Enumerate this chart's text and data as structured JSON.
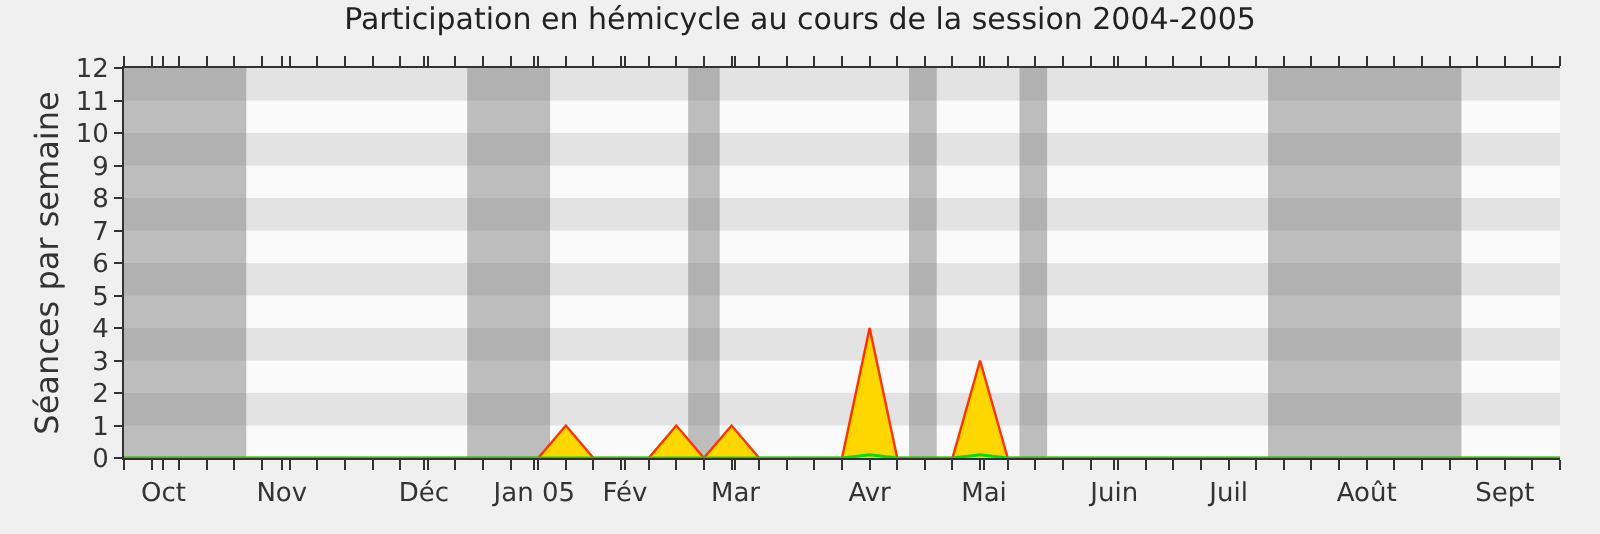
{
  "chart_data": {
    "type": "area",
    "title": "Participation en hémicycle au cours de la session 2004-2005",
    "ylabel": "Séances par semaine",
    "x": [
      "2004-09-27",
      "2004-10-04",
      "2004-10-11",
      "2004-10-18",
      "2004-10-25",
      "2004-11-01",
      "2004-11-08",
      "2004-11-15",
      "2004-11-22",
      "2004-11-29",
      "2004-12-06",
      "2004-12-13",
      "2004-12-20",
      "2004-12-27",
      "2005-01-03",
      "2005-01-10",
      "2005-01-17",
      "2005-01-24",
      "2005-01-31",
      "2005-02-07",
      "2005-02-14",
      "2005-02-21",
      "2005-02-28",
      "2005-03-07",
      "2005-03-14",
      "2005-03-21",
      "2005-03-28",
      "2005-04-04",
      "2005-04-11",
      "2005-04-18",
      "2005-04-25",
      "2005-05-02",
      "2005-05-09",
      "2005-05-16",
      "2005-05-23",
      "2005-05-30",
      "2005-06-06",
      "2005-06-13",
      "2005-06-20",
      "2005-06-27",
      "2005-07-04",
      "2005-07-11",
      "2005-07-18",
      "2005-07-25",
      "2005-08-01",
      "2005-08-08",
      "2005-08-15",
      "2005-08-22",
      "2005-08-29",
      "2005-09-05",
      "2005-09-12",
      "2005-09-19",
      "2005-09-26"
    ],
    "series": [
      {
        "color": "#ffd700",
        "values": [
          0,
          0,
          0,
          0,
          0,
          0,
          0,
          0,
          0,
          0,
          0,
          0,
          0,
          0,
          0,
          0,
          1,
          0,
          0,
          0,
          1,
          0,
          1,
          0,
          0,
          0,
          0,
          4,
          0,
          0,
          0,
          3,
          0,
          0,
          0,
          0,
          0,
          0,
          0,
          0,
          0,
          0,
          0,
          0,
          0,
          0,
          0,
          0,
          0,
          0,
          0,
          0,
          0
        ]
      },
      {
        "type": "line",
        "color": "#00e000",
        "values": [
          0,
          0,
          0,
          0,
          0,
          0,
          0,
          0,
          0,
          0,
          0,
          0,
          0,
          0,
          0,
          0,
          0,
          0,
          0,
          0,
          0,
          0,
          0,
          0,
          0,
          0,
          0,
          0.1,
          0,
          0,
          0,
          0.1,
          0,
          0,
          0,
          0,
          0,
          0,
          0,
          0,
          0,
          0,
          0,
          0,
          0,
          0,
          0,
          0,
          0,
          0,
          0,
          0,
          0
        ]
      }
    ],
    "xlim": [
      "2004-09-27",
      "2005-09-26"
    ],
    "xticks": [
      {
        "value": "2004-09-27",
        "label": null
      },
      {
        "value": "2004-10-04",
        "label": null
      },
      {
        "value": "2004-10-07",
        "label": "Oct"
      },
      {
        "value": "2004-10-11",
        "label": null
      },
      {
        "value": "2004-10-18",
        "label": null
      },
      {
        "value": "2004-10-25",
        "label": null
      },
      {
        "value": "2004-11-01",
        "label": null
      },
      {
        "value": "2004-11-06",
        "label": "Nov"
      },
      {
        "value": "2004-11-08",
        "label": null
      },
      {
        "value": "2004-11-15",
        "label": null
      },
      {
        "value": "2004-11-22",
        "label": null
      },
      {
        "value": "2004-11-29",
        "label": null
      },
      {
        "value": "2004-12-06",
        "label": null
      },
      {
        "value": "2004-12-12",
        "label": "Déc"
      },
      {
        "value": "2004-12-13",
        "label": null
      },
      {
        "value": "2004-12-20",
        "label": null
      },
      {
        "value": "2004-12-27",
        "label": null
      },
      {
        "value": "2005-01-03",
        "label": null
      },
      {
        "value": "2005-01-09",
        "label": "Jan 05"
      },
      {
        "value": "2005-01-10",
        "label": null
      },
      {
        "value": "2005-01-17",
        "label": null
      },
      {
        "value": "2005-01-24",
        "label": null
      },
      {
        "value": "2005-01-31",
        "label": null
      },
      {
        "value": "2005-02-01",
        "label": "Fév"
      },
      {
        "value": "2005-02-07",
        "label": null
      },
      {
        "value": "2005-02-14",
        "label": null
      },
      {
        "value": "2005-02-21",
        "label": null
      },
      {
        "value": "2005-02-28",
        "label": null
      },
      {
        "value": "2005-03-01",
        "label": "Mar"
      },
      {
        "value": "2005-03-07",
        "label": null
      },
      {
        "value": "2005-03-14",
        "label": null
      },
      {
        "value": "2005-03-21",
        "label": null
      },
      {
        "value": "2005-03-28",
        "label": null
      },
      {
        "value": "2005-04-04",
        "label": "Avr"
      },
      {
        "value": "2005-04-11",
        "label": null
      },
      {
        "value": "2005-04-18",
        "label": null
      },
      {
        "value": "2005-04-25",
        "label": null
      },
      {
        "value": "2005-05-02",
        "label": null
      },
      {
        "value": "2005-05-03",
        "label": "Mai"
      },
      {
        "value": "2005-05-09",
        "label": null
      },
      {
        "value": "2005-05-16",
        "label": null
      },
      {
        "value": "2005-05-23",
        "label": null
      },
      {
        "value": "2005-05-30",
        "label": null
      },
      {
        "value": "2005-06-05",
        "label": "Juin"
      },
      {
        "value": "2005-06-06",
        "label": null
      },
      {
        "value": "2005-06-13",
        "label": null
      },
      {
        "value": "2005-06-20",
        "label": null
      },
      {
        "value": "2005-06-27",
        "label": null
      },
      {
        "value": "2005-07-04",
        "label": "Juil"
      },
      {
        "value": "2005-07-11",
        "label": null
      },
      {
        "value": "2005-07-18",
        "label": null
      },
      {
        "value": "2005-07-25",
        "label": null
      },
      {
        "value": "2005-08-01",
        "label": null
      },
      {
        "value": "2005-08-08",
        "label": "Août"
      },
      {
        "value": "2005-08-15",
        "label": null
      },
      {
        "value": "2005-08-22",
        "label": null
      },
      {
        "value": "2005-08-29",
        "label": null
      },
      {
        "value": "2005-09-05",
        "label": null
      },
      {
        "value": "2005-09-12",
        "label": "Sept"
      },
      {
        "value": "2005-09-19",
        "label": null
      },
      {
        "value": "2005-09-26",
        "label": null
      }
    ],
    "ylim": [
      0,
      12
    ],
    "yticks": [
      0,
      1,
      2,
      3,
      4,
      5,
      6,
      7,
      8,
      9,
      10,
      11,
      12
    ],
    "bands": [
      {
        "axis": "y",
        "from": 1,
        "to": 2,
        "color": "#cccccc"
      },
      {
        "axis": "y",
        "from": 3,
        "to": 4,
        "color": "#cccccc"
      },
      {
        "axis": "y",
        "from": 5,
        "to": 6,
        "color": "#cccccc"
      },
      {
        "axis": "y",
        "from": 7,
        "to": 8,
        "color": "#cccccc"
      },
      {
        "axis": "y",
        "from": 9,
        "to": 10,
        "color": "#cccccc"
      },
      {
        "axis": "y",
        "from": 11,
        "to": 12,
        "color": "#cccccc"
      },
      {
        "axis": "x",
        "from": "2004-09-27",
        "to": "2004-10-28",
        "color": "#808080"
      },
      {
        "axis": "x",
        "from": "2004-12-23",
        "to": "2005-01-13",
        "color": "#808080"
      },
      {
        "axis": "x",
        "from": "2005-02-17",
        "to": "2005-02-25",
        "color": "#808080"
      },
      {
        "axis": "x",
        "from": "2005-04-14",
        "to": "2005-04-21",
        "color": "#808080"
      },
      {
        "axis": "x",
        "from": "2005-05-12",
        "to": "2005-05-19",
        "color": "#808080"
      },
      {
        "axis": "x",
        "from": "2005-07-14",
        "to": "2005-09-01",
        "color": "#808080"
      }
    ]
  }
}
